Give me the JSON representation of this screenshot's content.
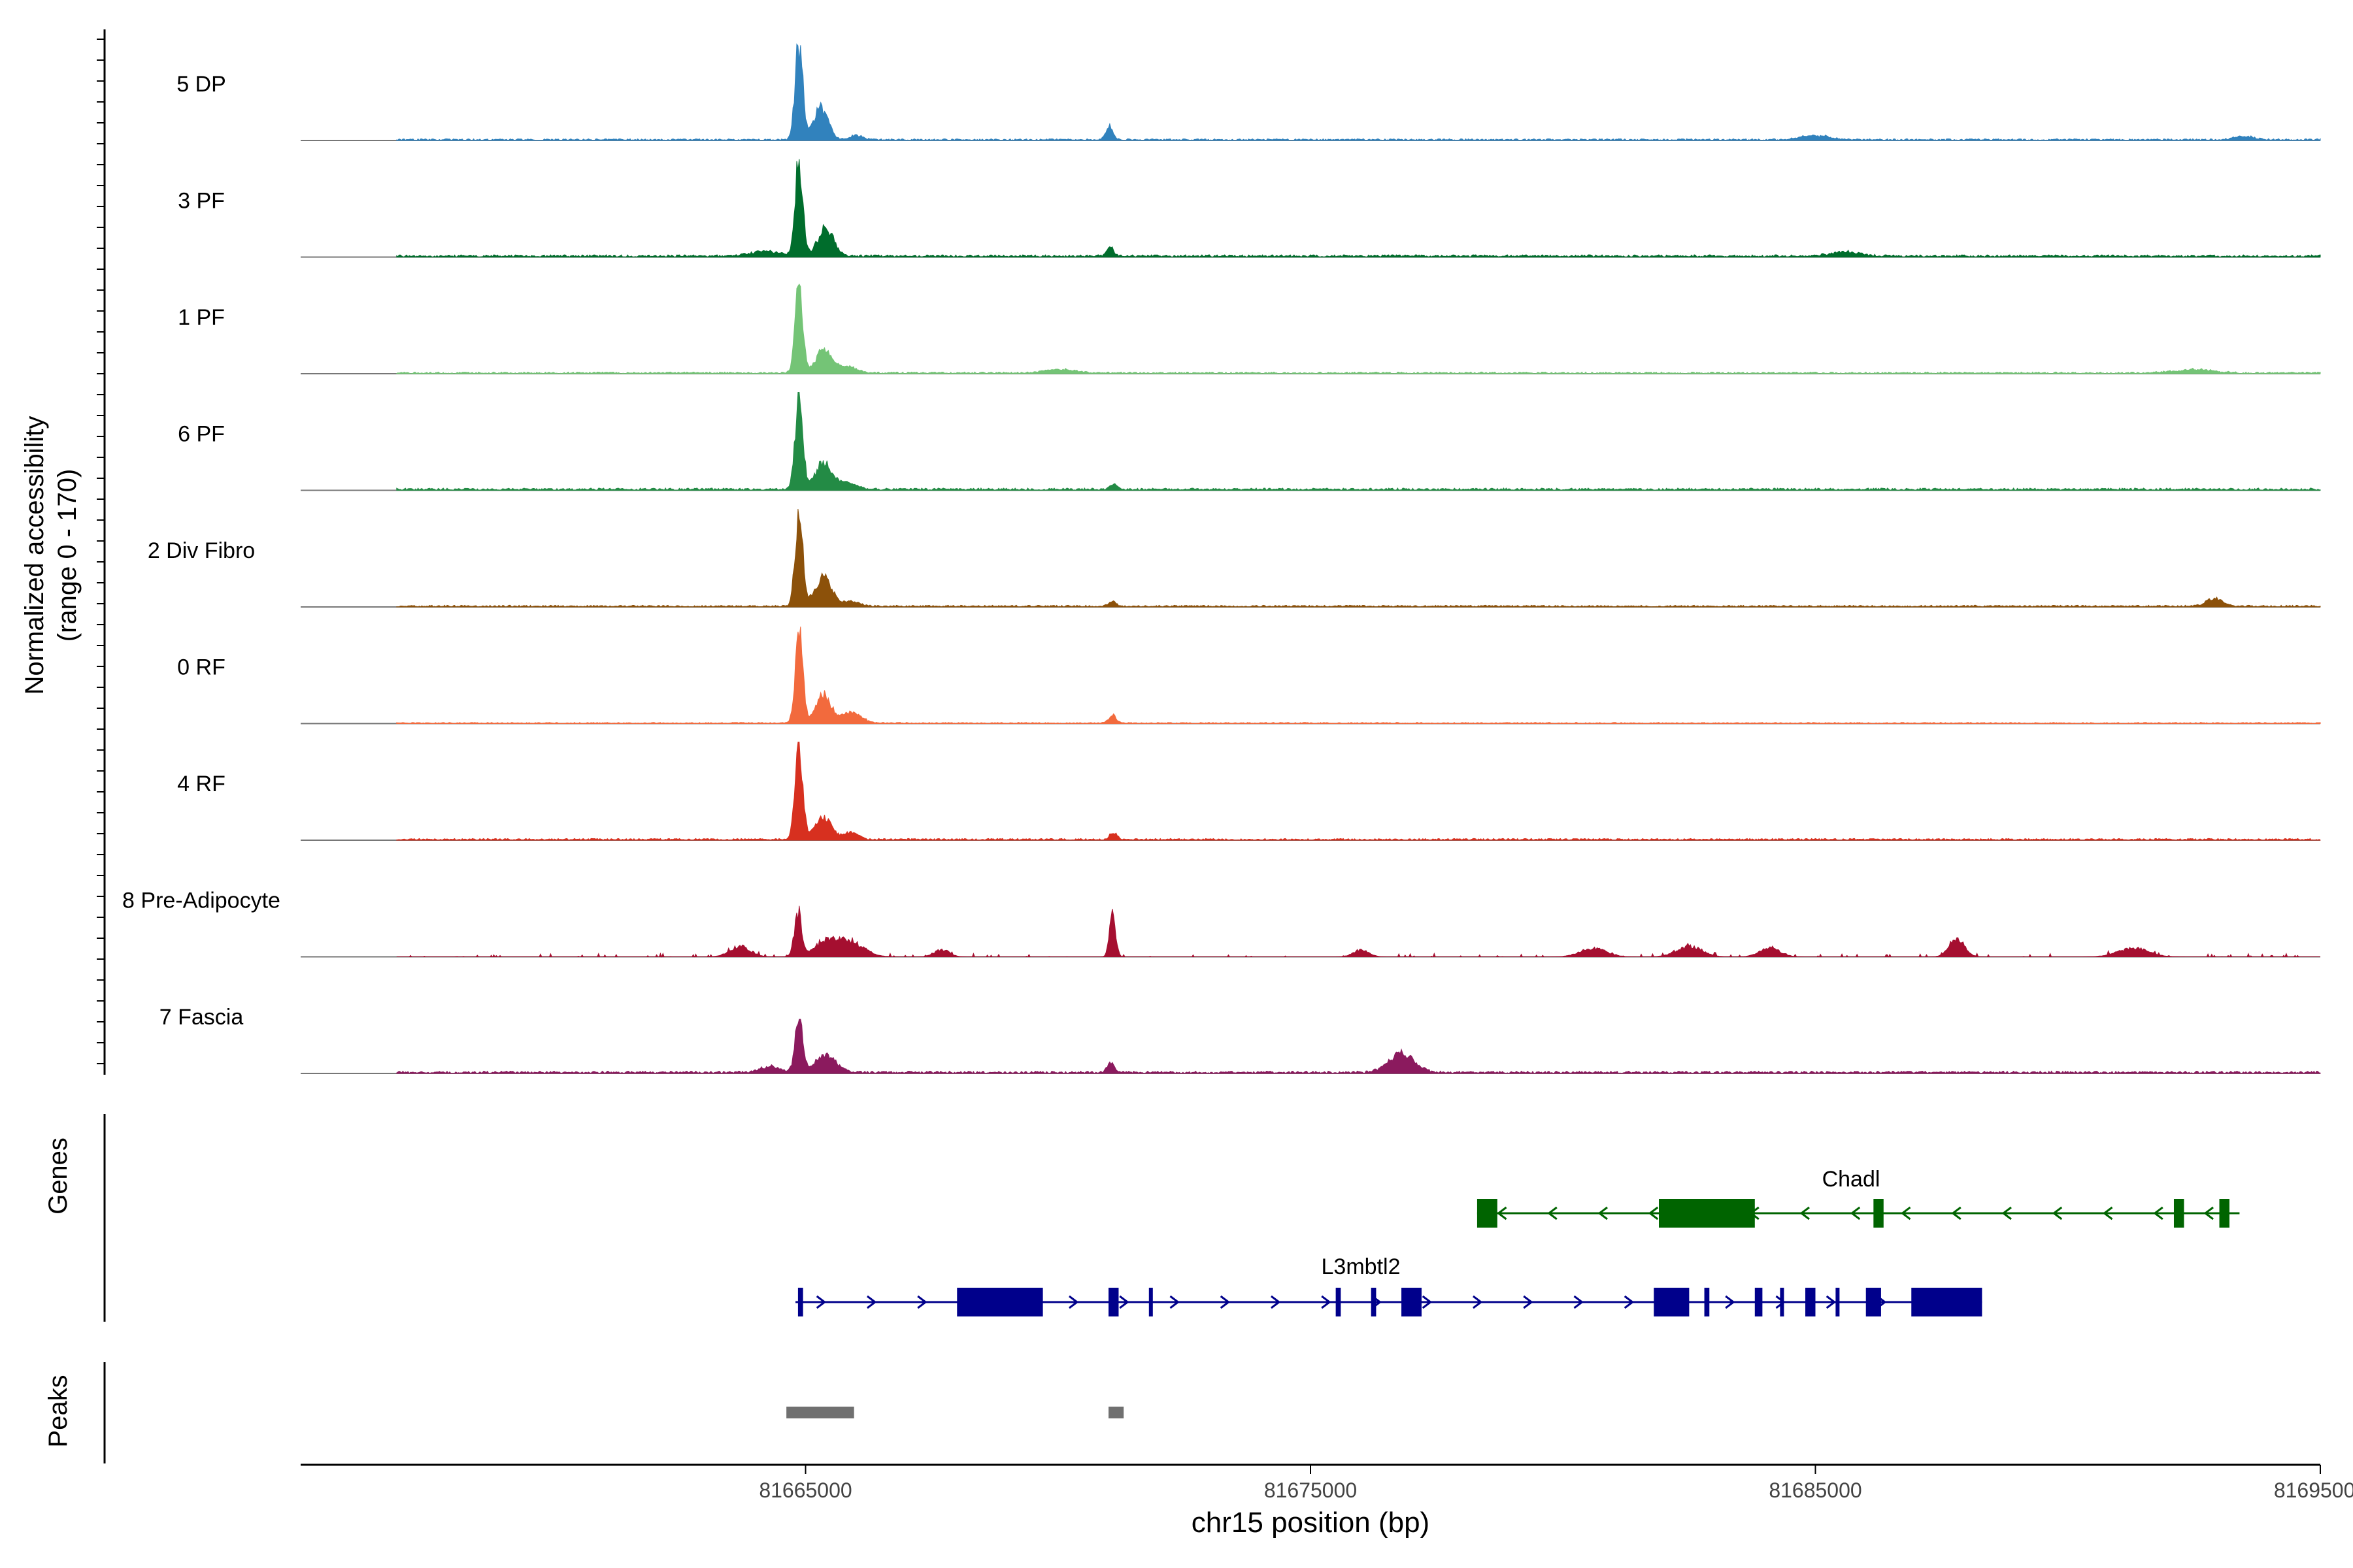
{
  "chart_data": {
    "type": "area",
    "title": "",
    "xlabel": "chr15 position (bp)",
    "ylabel_line1": "Normalized accessibility",
    "ylabel_line2": "(range 0 - 170)",
    "xlim": [
      81655000,
      81695000
    ],
    "ylim": [
      0,
      170
    ],
    "x_ticks": [
      81665000,
      81675000,
      81685000,
      81695000
    ],
    "x_tick_labels": [
      "81665000",
      "81675000",
      "81685000",
      "81695000"
    ],
    "region": [
      81656900,
      81695000
    ],
    "tracks": [
      {
        "name": "5 DP",
        "color": "#3182bd",
        "peaks": [
          [
            81664870,
            168,
            75
          ],
          [
            81665300,
            56,
            140
          ],
          [
            81666000,
            8,
            120
          ],
          [
            81671020,
            23,
            70
          ],
          [
            81685000,
            7,
            300
          ],
          [
            81693500,
            6,
            200
          ]
        ],
        "noise": 3
      },
      {
        "name": "3 PF",
        "color": "#006d2c",
        "peaks": [
          [
            81664870,
            168,
            75
          ],
          [
            81665400,
            46,
            160
          ],
          [
            81664200,
            8,
            300
          ],
          [
            81671040,
            14,
            70
          ],
          [
            81685600,
            7,
            300
          ]
        ],
        "noise": 4
      },
      {
        "name": "1 PF",
        "color": "#74c476",
        "peaks": [
          [
            81664870,
            153,
            75
          ],
          [
            81665350,
            39,
            150
          ],
          [
            81665800,
            12,
            200
          ],
          [
            81670000,
            6,
            300
          ],
          [
            81692500,
            6,
            400
          ]
        ],
        "noise": 3
      },
      {
        "name": "6 PF",
        "color": "#238b45",
        "peaks": [
          [
            81664870,
            168,
            75
          ],
          [
            81665350,
            46,
            160
          ],
          [
            81665800,
            12,
            200
          ],
          [
            81671100,
            10,
            70
          ]
        ],
        "noise": 4
      },
      {
        "name": "2 Div Fibro",
        "color": "#8c510a",
        "peaks": [
          [
            81664870,
            168,
            75
          ],
          [
            81665350,
            52,
            160
          ],
          [
            81665900,
            9,
            150
          ],
          [
            81671080,
            8,
            70
          ],
          [
            81692900,
            14,
            150
          ]
        ],
        "noise": 3
      },
      {
        "name": "0 RF",
        "color": "#f26a3d",
        "peaks": [
          [
            81664870,
            160,
            75
          ],
          [
            81665350,
            48,
            150
          ],
          [
            81665900,
            18,
            200
          ],
          [
            81671080,
            14,
            70
          ]
        ],
        "noise": 2
      },
      {
        "name": "4 RF",
        "color": "#d7301f",
        "peaks": [
          [
            81664870,
            168,
            75
          ],
          [
            81665350,
            40,
            160
          ],
          [
            81665900,
            12,
            150
          ],
          [
            81671100,
            12,
            70
          ]
        ],
        "noise": 3
      },
      {
        "name": "8 Pre-Adipocyte",
        "color": "#a50f30",
        "peaks": [
          [
            81664850,
            75,
            70
          ],
          [
            81671080,
            70,
            60
          ],
          [
            81663700,
            18,
            200
          ],
          [
            81665500,
            30,
            300
          ],
          [
            81666000,
            15,
            250
          ],
          [
            81667700,
            12,
            150
          ],
          [
            81676000,
            12,
            150
          ],
          [
            81680600,
            15,
            250
          ],
          [
            81682500,
            18,
            250
          ],
          [
            81684100,
            15,
            200
          ],
          [
            81687800,
            32,
            150
          ],
          [
            81691300,
            15,
            300
          ]
        ],
        "noise": 2,
        "sparse": true
      },
      {
        "name": "7 Fascia",
        "color": "#8b1a5e",
        "peaks": [
          [
            81664870,
            96,
            75
          ],
          [
            81665400,
            30,
            200
          ],
          [
            81664300,
            10,
            200
          ],
          [
            81671050,
            18,
            70
          ],
          [
            81676800,
            34,
            250
          ]
        ],
        "noise": 4
      }
    ],
    "gene_track_label": "Genes",
    "peak_track_label": "Peaks",
    "genes": [
      {
        "name": "Chadl",
        "strand": "-",
        "color": "#006400",
        "start": 81678300,
        "end": 81693400,
        "exons": [
          [
            81678300,
            81678700
          ],
          [
            81681900,
            81683800
          ],
          [
            81686150,
            81686350
          ],
          [
            81692100,
            81692300
          ],
          [
            81693000,
            81693200
          ]
        ]
      },
      {
        "name": "L3mbtl2",
        "strand": "+",
        "color": "#00008b",
        "start": 81664800,
        "end": 81688300,
        "exons": [
          [
            81664850,
            81664950
          ],
          [
            81668000,
            81669700
          ],
          [
            81671000,
            81671200
          ],
          [
            81671800,
            81671850
          ],
          [
            81675500,
            81675600
          ],
          [
            81676200,
            81676300
          ],
          [
            81676800,
            81677200
          ],
          [
            81681800,
            81682500
          ],
          [
            81682800,
            81682900
          ],
          [
            81683800,
            81683950
          ],
          [
            81684300,
            81684350
          ],
          [
            81684800,
            81685000
          ],
          [
            81685400,
            81685450
          ],
          [
            81686000,
            81686300
          ],
          [
            81686900,
            81688300
          ]
        ]
      }
    ],
    "peaks": [
      [
        81664620,
        81665960
      ],
      [
        81671000,
        81671300
      ]
    ]
  }
}
